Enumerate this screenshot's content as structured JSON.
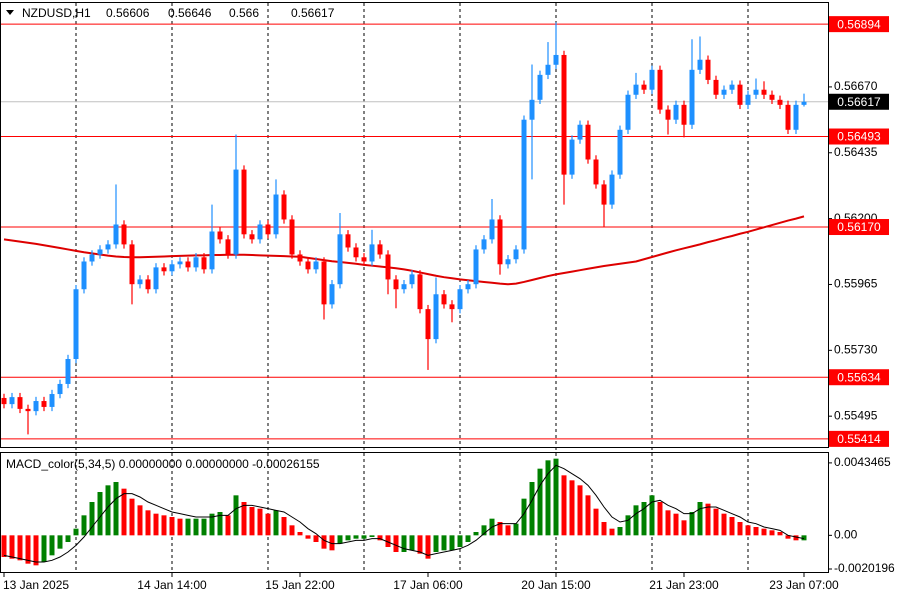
{
  "chart_data": [
    {
      "type": "candlestick",
      "title": "NZDUSD,H1",
      "categories": [
        "13 Jan 2025",
        null,
        null,
        null,
        null,
        null,
        null,
        null,
        null,
        null,
        null,
        null,
        null,
        null,
        null,
        null,
        null,
        null,
        null,
        null,
        null,
        "14 Jan 14:00",
        null,
        null,
        null,
        null,
        null,
        null,
        null,
        null,
        null,
        null,
        null,
        null,
        null,
        null,
        null,
        "15 Jan 22:00",
        null,
        null,
        null,
        null,
        null,
        null,
        null,
        null,
        null,
        null,
        null,
        null,
        null,
        null,
        null,
        "17 Jan 06:00",
        null,
        null,
        null,
        null,
        null,
        null,
        null,
        null,
        null,
        null,
        null,
        null,
        null,
        null,
        null,
        "20 Jan 15:00",
        null,
        null,
        null,
        null,
        null,
        null,
        null,
        null,
        null,
        null,
        null,
        null,
        null,
        null,
        null,
        "21 Jan 23:00",
        null,
        null,
        null,
        null,
        null,
        null,
        null,
        null,
        null,
        null,
        null,
        null,
        null,
        null,
        "23 Jan 07:00"
      ],
      "open": [
        0.5556,
        0.55538,
        0.55563,
        0.55521,
        0.55513,
        0.55549,
        0.55528,
        0.55574,
        0.5561,
        0.55699,
        0.55948,
        0.56047,
        0.56072,
        0.5609,
        0.56108,
        0.56179,
        0.56108,
        0.55966,
        0.55983,
        0.55948,
        0.56026,
        0.56012,
        0.56037,
        0.56047,
        0.56026,
        0.56062,
        0.56019,
        0.56154,
        0.56126,
        0.56072,
        0.56375,
        0.56144,
        0.56126,
        0.56179,
        0.56144,
        0.56286,
        0.56197,
        0.56072,
        0.56047,
        0.56019,
        0.56047,
        0.55894,
        0.55966,
        0.56144,
        0.56097,
        0.56062,
        0.56047,
        0.56108,
        0.56072,
        0.55983,
        0.55948,
        0.55966,
        0.56001,
        0.55877,
        0.5577,
        0.5593,
        0.55894,
        0.55877,
        0.55948,
        0.55966,
        0.5609,
        0.56126,
        0.56197,
        0.56037,
        0.56055,
        0.5609,
        0.56553,
        0.56624,
        0.56713,
        0.56749,
        0.56784,
        0.56357,
        0.56482,
        0.56535,
        0.56411,
        0.56322,
        0.5625,
        0.56357,
        0.56517,
        0.56642,
        0.56678,
        0.5666,
        0.56731,
        0.56589,
        0.56553,
        0.56606,
        0.56535,
        0.56731,
        0.56767,
        0.56695,
        0.56642,
        0.5666,
        0.56678,
        0.56606,
        0.56642,
        0.5666,
        0.56642,
        0.56624,
        0.56606,
        0.56517,
        0.56606
      ],
      "high": [
        0.55575,
        0.55578,
        0.55578,
        0.55536,
        0.55564,
        0.55564,
        0.55589,
        0.55625,
        0.55714,
        0.55963,
        0.56062,
        0.56087,
        0.56105,
        0.56123,
        0.56322,
        0.56194,
        0.56123,
        0.55998,
        0.55998,
        0.56041,
        0.56041,
        0.56052,
        0.56062,
        0.56062,
        0.56077,
        0.56077,
        0.5625,
        0.56169,
        0.56141,
        0.565,
        0.5639,
        0.56159,
        0.56194,
        0.56194,
        0.5634,
        0.56301,
        0.56212,
        0.56087,
        0.56062,
        0.56062,
        0.56062,
        0.55981,
        0.5622,
        0.56159,
        0.56112,
        0.56077,
        0.5616,
        0.56123,
        0.56087,
        0.55998,
        0.55981,
        0.56016,
        0.56016,
        0.55892,
        0.5599,
        0.55945,
        0.55909,
        0.55963,
        0.55981,
        0.56105,
        0.56141,
        0.5627,
        0.56212,
        0.5607,
        0.56105,
        0.56568,
        0.5675,
        0.56728,
        0.5683,
        0.569,
        0.56799,
        0.56497,
        0.5655,
        0.5655,
        0.56426,
        0.56337,
        0.56372,
        0.56532,
        0.56657,
        0.5672,
        0.56693,
        0.56746,
        0.56746,
        0.56604,
        0.56621,
        0.56621,
        0.5684,
        0.5685,
        0.56782,
        0.5671,
        0.56675,
        0.56693,
        0.56693,
        0.56657,
        0.567,
        0.5669,
        0.56657,
        0.56639,
        0.56621,
        0.56621,
        0.56646
      ],
      "low": [
        0.55523,
        0.55523,
        0.55506,
        0.5543,
        0.55498,
        0.55513,
        0.55513,
        0.55559,
        0.55595,
        0.55684,
        0.55933,
        0.56032,
        0.56057,
        0.56075,
        0.56093,
        0.56093,
        0.55894,
        0.55951,
        0.55933,
        0.55933,
        0.55997,
        0.55997,
        0.56022,
        0.56011,
        0.56011,
        0.56004,
        0.56004,
        0.56111,
        0.56057,
        0.56057,
        0.56129,
        0.56111,
        0.56111,
        0.56129,
        0.56129,
        0.56182,
        0.56057,
        0.56032,
        0.56004,
        0.56004,
        0.5584,
        0.55879,
        0.55951,
        0.56082,
        0.56047,
        0.56032,
        0.56032,
        0.56057,
        0.5593,
        0.5588,
        0.55933,
        0.55951,
        0.55862,
        0.5566,
        0.55755,
        0.55879,
        0.5583,
        0.55862,
        0.55933,
        0.55951,
        0.56075,
        0.56111,
        0.56,
        0.56022,
        0.5604,
        0.56075,
        0.5634,
        0.56609,
        0.56698,
        0.56734,
        0.5625,
        0.56342,
        0.56467,
        0.56396,
        0.56307,
        0.5617,
        0.56235,
        0.56342,
        0.56502,
        0.56627,
        0.56645,
        0.56645,
        0.56574,
        0.565,
        0.56538,
        0.5649,
        0.5652,
        0.56716,
        0.5668,
        0.56627,
        0.56627,
        0.56645,
        0.56591,
        0.56591,
        0.56627,
        0.56627,
        0.56609,
        0.56591,
        0.56502,
        0.56502,
        0.566
      ],
      "close": [
        0.55538,
        0.55563,
        0.55521,
        0.55513,
        0.55549,
        0.55528,
        0.55574,
        0.5561,
        0.55699,
        0.55948,
        0.56047,
        0.56072,
        0.5609,
        0.56108,
        0.56179,
        0.56108,
        0.55966,
        0.55983,
        0.55948,
        0.56026,
        0.56012,
        0.56037,
        0.56047,
        0.56026,
        0.56062,
        0.56019,
        0.56154,
        0.56126,
        0.56072,
        0.56375,
        0.56144,
        0.56126,
        0.56179,
        0.56144,
        0.56286,
        0.56197,
        0.56072,
        0.56047,
        0.56019,
        0.56047,
        0.55894,
        0.55966,
        0.56144,
        0.56097,
        0.56062,
        0.56047,
        0.56108,
        0.56072,
        0.55983,
        0.55948,
        0.55966,
        0.56001,
        0.55877,
        0.5577,
        0.5593,
        0.55894,
        0.55877,
        0.55948,
        0.55966,
        0.5609,
        0.56126,
        0.56197,
        0.56037,
        0.56055,
        0.5609,
        0.56553,
        0.56624,
        0.56713,
        0.56749,
        0.56784,
        0.56357,
        0.56482,
        0.56535,
        0.56411,
        0.56322,
        0.5625,
        0.56357,
        0.56517,
        0.56642,
        0.56678,
        0.5666,
        0.56731,
        0.56589,
        0.56553,
        0.56606,
        0.56535,
        0.56731,
        0.56767,
        0.56695,
        0.56642,
        0.5666,
        0.56678,
        0.56606,
        0.56642,
        0.5666,
        0.56642,
        0.56624,
        0.56606,
        0.56517,
        0.56606,
        0.56617
      ],
      "ma": [
        0.56126,
        0.56122,
        0.56118,
        0.56114,
        0.5611,
        0.56105,
        0.561,
        0.56095,
        0.5609,
        0.56085,
        0.5608,
        0.56076,
        0.56072,
        0.56068,
        0.56065,
        0.56063,
        0.56062,
        0.56062,
        0.56063,
        0.56064,
        0.56065,
        0.56066,
        0.56067,
        0.56068,
        0.56069,
        0.56069,
        0.5607,
        0.5607,
        0.56071,
        0.56071,
        0.56071,
        0.5607,
        0.56069,
        0.56068,
        0.56067,
        0.56066,
        0.56065,
        0.56064,
        0.5606,
        0.56056,
        0.56052,
        0.56048,
        0.56045,
        0.56042,
        0.56039,
        0.56035,
        0.56032,
        0.56029,
        0.56026,
        0.56023,
        0.56019,
        0.56014,
        0.56008,
        0.56002,
        0.55996,
        0.55991,
        0.55987,
        0.55983,
        0.5598,
        0.55977,
        0.55974,
        0.55971,
        0.55968,
        0.55966,
        0.55968,
        0.55974,
        0.55981,
        0.55988,
        0.55995,
        0.56001,
        0.56006,
        0.56011,
        0.56016,
        0.56021,
        0.56026,
        0.56031,
        0.56035,
        0.56039,
        0.56043,
        0.56047,
        0.56055,
        0.56063,
        0.56071,
        0.56079,
        0.56087,
        0.56094,
        0.56101,
        0.56108,
        0.56116,
        0.56123,
        0.56131,
        0.56138,
        0.56146,
        0.56153,
        0.56161,
        0.56169,
        0.56177,
        0.56185,
        0.56193,
        0.562,
        0.56208
      ],
      "up_color": "#1e90ff",
      "down_color": "#ff0000",
      "ma_color": "#dd0000",
      "levels": [
        0.56894,
        0.56493,
        {
          "value": 0.5617,
          "label": "0.56170"
        },
        0.55634,
        0.55414
      ],
      "level_color": "#ff0000",
      "price_line_color": "#c0c0c0",
      "separators": [
        9,
        21,
        33,
        45,
        57,
        69,
        81,
        93
      ],
      "ylim": [
        0.55385,
        0.56973
      ],
      "yticks": [
        {
          "value": 0.5667,
          "label": "0.56670"
        },
        0.56435,
        {
          "value": 0.562,
          "label": "0.56200"
        },
        0.55965,
        {
          "value": 0.5573,
          "label": "0.55730"
        },
        0.55495
      ]
    },
    {
      "type": "macd",
      "title": "MACD_color(5,34,5) 0.00000000 0.00000000 -0.00026155",
      "values": [
        -0.0013,
        -0.0014,
        -0.0015,
        -0.0017,
        -0.0018,
        -0.0016,
        -0.0012,
        -0.0008,
        -0.0004,
        0.0004,
        0.0012,
        0.002,
        0.0026,
        0.003,
        0.0032,
        0.0028,
        0.0022,
        0.0018,
        0.0015,
        0.0013,
        0.0012,
        0.0011,
        0.001,
        0.001,
        0.001,
        0.001,
        0.0013,
        0.0014,
        0.0012,
        0.0024,
        0.002,
        0.0017,
        0.0016,
        0.0013,
        0.0015,
        0.0011,
        0.0006,
        0.0002,
        -0.0002,
        -0.0004,
        -0.0008,
        -0.0009,
        -0.0005,
        -0.0003,
        -0.0002,
        -0.0002,
        -0.0001,
        -0.0003,
        -0.0007,
        -0.001,
        -0.001,
        -0.0009,
        -0.0011,
        -0.0014,
        -0.001,
        -0.0009,
        -0.0009,
        -0.0007,
        -0.0004,
        0.0002,
        0.0006,
        0.001,
        0.0008,
        0.0006,
        0.0007,
        0.0022,
        0.0032,
        0.004,
        0.0045,
        0.0046,
        0.0036,
        0.0033,
        0.003,
        0.0024,
        0.0016,
        0.0008,
        0.0004,
        0.0005,
        0.0012,
        0.0018,
        0.002,
        0.0024,
        0.002,
        0.0015,
        0.0013,
        0.0009,
        0.0014,
        0.002,
        0.0019,
        0.0016,
        0.0013,
        0.0011,
        0.0008,
        0.0006,
        0.0005,
        0.0004,
        0.0003,
        0.0002,
        -0.0002,
        -0.0003,
        -0.0003
      ],
      "signal": [
        -0.0012,
        -0.0013,
        -0.0014,
        -0.0015,
        -0.0016,
        -0.0016,
        -0.0015,
        -0.0013,
        -0.001,
        -0.0006,
        -0.0001,
        0.0005,
        0.0011,
        0.0017,
        0.0022,
        0.0025,
        0.0025,
        0.0023,
        0.002,
        0.0018,
        0.0016,
        0.0014,
        0.0013,
        0.0012,
        0.0011,
        0.0011,
        0.0011,
        0.0012,
        0.0012,
        0.0016,
        0.0018,
        0.0018,
        0.0017,
        0.0016,
        0.0015,
        0.0014,
        0.0011,
        0.0008,
        0.0004,
        0.0001,
        -0.0003,
        -0.0005,
        -0.0005,
        -0.0004,
        -0.0003,
        -0.0003,
        -0.0002,
        -0.0002,
        -0.0004,
        -0.0006,
        -0.0008,
        -0.0009,
        -0.001,
        -0.0012,
        -0.0011,
        -0.001,
        -0.0009,
        -0.0008,
        -0.0006,
        -0.0003,
        0.0001,
        0.0005,
        0.0007,
        0.0007,
        0.0007,
        0.0013,
        0.0021,
        0.003,
        0.0037,
        0.0042,
        0.004,
        0.0037,
        0.0034,
        0.003,
        0.0024,
        0.0017,
        0.0011,
        0.0008,
        0.0009,
        0.0013,
        0.0016,
        0.002,
        0.0021,
        0.0018,
        0.0016,
        0.0013,
        0.0013,
        0.0016,
        0.0017,
        0.0017,
        0.0015,
        0.0013,
        0.0011,
        0.0008,
        0.0007,
        0.0005,
        0.0004,
        0.0003,
        0,
        -0.0001,
        -0.0002
      ],
      "up_color": "#008000",
      "down_color": "#ff0000",
      "signal_color": "#000000",
      "ylim": [
        -0.0022,
        0.005
      ],
      "yticks": [
        0.0043465,
        {
          "value": 0,
          "label": "0.00"
        },
        -0.0020196
      ]
    }
  ]
}
